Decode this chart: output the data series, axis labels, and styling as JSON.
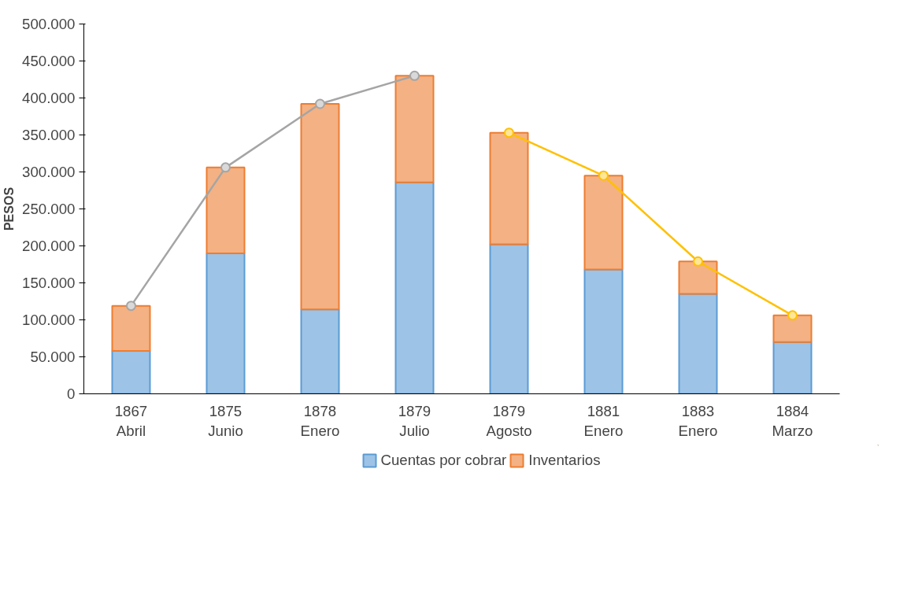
{
  "chart_data": {
    "type": "bar",
    "stacked": true,
    "ylabel": "PESOS",
    "categories": [
      "1867\nAbril",
      "1875\nJunio",
      "1878\nEnero",
      "1879\nJulio",
      "1879\nAgosto",
      "1881\nEnero",
      "1883\nEnero",
      "1884\nMarzo"
    ],
    "series": [
      {
        "name": "Cuentas por cobrar",
        "color": "#9dc3e6",
        "values": [
          58000,
          190000,
          114000,
          286000,
          202000,
          168000,
          135000,
          70000
        ]
      },
      {
        "name": "Inventarios",
        "color": "#f4b183",
        "values": [
          61000,
          116000,
          278000,
          144000,
          151000,
          127000,
          44000,
          36000
        ]
      },
      {
        "type": "line",
        "color": "#a5a5a5",
        "values": [
          119000,
          306000,
          392000,
          430000,
          null,
          null,
          null,
          null
        ]
      },
      {
        "type": "line",
        "color": "#ffc000",
        "values": [
          null,
          null,
          null,
          null,
          353000,
          295000,
          179000,
          106000
        ]
      }
    ],
    "ylim": [
      0,
      500000
    ],
    "yticks": [
      {
        "value": 0,
        "label": "0"
      },
      {
        "value": 50000,
        "label": "50.000"
      },
      {
        "value": 100000,
        "label": "100.000"
      },
      {
        "value": 150000,
        "label": "150.000"
      },
      {
        "value": 200000,
        "label": "200.000"
      },
      {
        "value": 250000,
        "label": "250.000"
      },
      {
        "value": 300000,
        "label": "300.000"
      },
      {
        "value": 350000,
        "label": "350.000"
      },
      {
        "value": 400000,
        "label": "400.000"
      },
      {
        "value": 450000,
        "label": "450.000"
      },
      {
        "value": 500000,
        "label": "500.000"
      }
    ],
    "grid": false,
    "legend": "bottom",
    "marker": "circle",
    "line_style": "solid"
  }
}
